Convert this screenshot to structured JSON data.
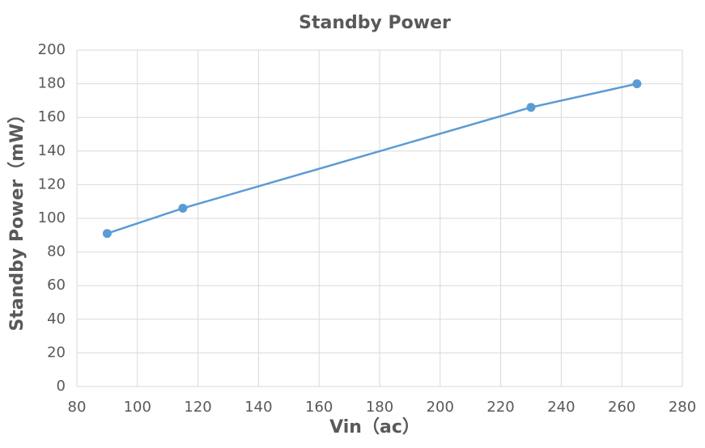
{
  "chart_data": {
    "type": "line",
    "title": "Standby Power",
    "x_label": "Vin（ac）",
    "y_label": "Standby Power（mW）",
    "x": [
      90,
      115,
      230,
      265
    ],
    "series": [
      {
        "name": "Standby Power",
        "color": "#5b9bd5",
        "values": [
          91,
          106,
          166,
          180
        ]
      }
    ],
    "xlim": [
      80,
      280
    ],
    "xticks": [
      80,
      100,
      120,
      140,
      160,
      180,
      200,
      220,
      240,
      260,
      280
    ],
    "ylim": [
      0,
      200
    ],
    "yticks": [
      0,
      20,
      40,
      60,
      80,
      100,
      120,
      140,
      160,
      180,
      200
    ],
    "grid": true
  }
}
